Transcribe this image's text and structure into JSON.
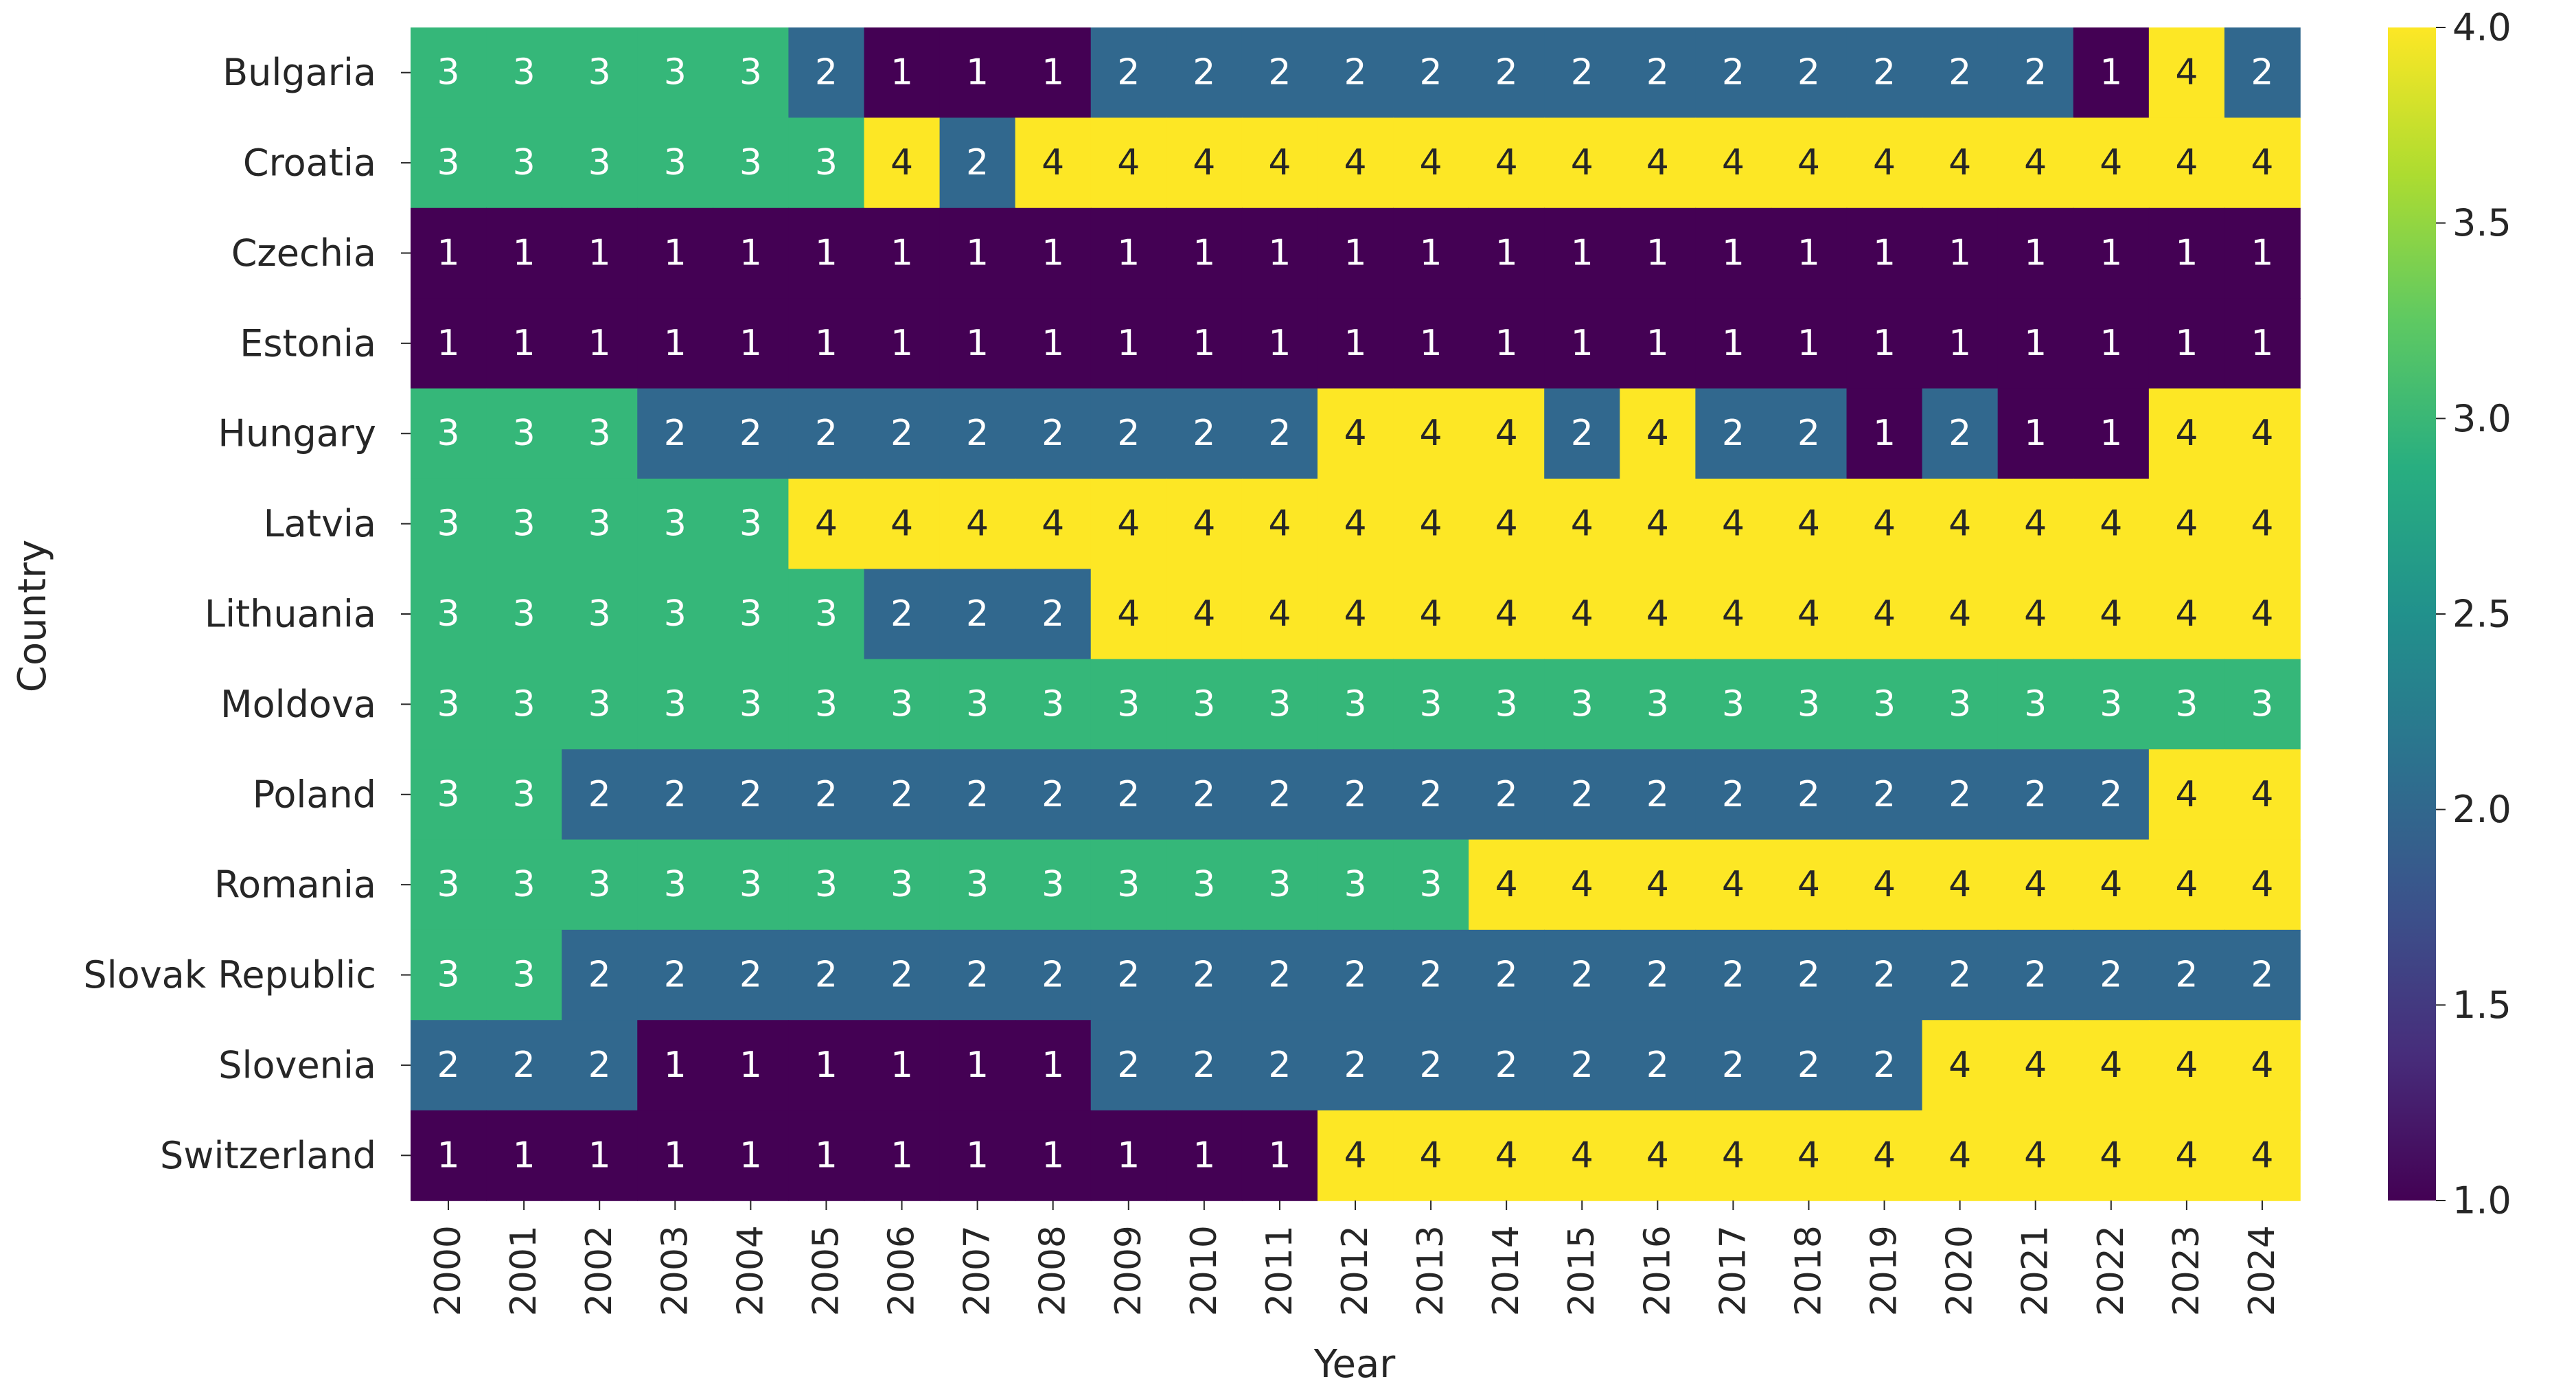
{
  "chart_data": {
    "type": "heatmap",
    "title": "",
    "xlabel": "Year",
    "ylabel": "Country",
    "x": [
      "2000",
      "2001",
      "2002",
      "2003",
      "2004",
      "2005",
      "2006",
      "2007",
      "2008",
      "2009",
      "2010",
      "2011",
      "2012",
      "2013",
      "2014",
      "2015",
      "2016",
      "2017",
      "2018",
      "2019",
      "2020",
      "2021",
      "2022",
      "2023",
      "2024"
    ],
    "y": [
      "Bulgaria",
      "Croatia",
      "Czechia",
      "Estonia",
      "Hungary",
      "Latvia",
      "Lithuania",
      "Moldova",
      "Poland",
      "Romania",
      "Slovak Republic",
      "Slovenia",
      "Switzerland"
    ],
    "values": [
      [
        3,
        3,
        3,
        3,
        3,
        2,
        1,
        1,
        1,
        2,
        2,
        2,
        2,
        2,
        2,
        2,
        2,
        2,
        2,
        2,
        2,
        2,
        1,
        4,
        2
      ],
      [
        3,
        3,
        3,
        3,
        3,
        3,
        4,
        2,
        4,
        4,
        4,
        4,
        4,
        4,
        4,
        4,
        4,
        4,
        4,
        4,
        4,
        4,
        4,
        4,
        4
      ],
      [
        1,
        1,
        1,
        1,
        1,
        1,
        1,
        1,
        1,
        1,
        1,
        1,
        1,
        1,
        1,
        1,
        1,
        1,
        1,
        1,
        1,
        1,
        1,
        1,
        1
      ],
      [
        1,
        1,
        1,
        1,
        1,
        1,
        1,
        1,
        1,
        1,
        1,
        1,
        1,
        1,
        1,
        1,
        1,
        1,
        1,
        1,
        1,
        1,
        1,
        1,
        1
      ],
      [
        3,
        3,
        3,
        2,
        2,
        2,
        2,
        2,
        2,
        2,
        2,
        2,
        4,
        4,
        4,
        2,
        4,
        2,
        2,
        1,
        2,
        1,
        1,
        4,
        4
      ],
      [
        3,
        3,
        3,
        3,
        3,
        4,
        4,
        4,
        4,
        4,
        4,
        4,
        4,
        4,
        4,
        4,
        4,
        4,
        4,
        4,
        4,
        4,
        4,
        4,
        4
      ],
      [
        3,
        3,
        3,
        3,
        3,
        3,
        2,
        2,
        2,
        4,
        4,
        4,
        4,
        4,
        4,
        4,
        4,
        4,
        4,
        4,
        4,
        4,
        4,
        4,
        4
      ],
      [
        3,
        3,
        3,
        3,
        3,
        3,
        3,
        3,
        3,
        3,
        3,
        3,
        3,
        3,
        3,
        3,
        3,
        3,
        3,
        3,
        3,
        3,
        3,
        3,
        3
      ],
      [
        3,
        3,
        2,
        2,
        2,
        2,
        2,
        2,
        2,
        2,
        2,
        2,
        2,
        2,
        2,
        2,
        2,
        2,
        2,
        2,
        2,
        2,
        2,
        4,
        4
      ],
      [
        3,
        3,
        3,
        3,
        3,
        3,
        3,
        3,
        3,
        3,
        3,
        3,
        3,
        3,
        4,
        4,
        4,
        4,
        4,
        4,
        4,
        4,
        4,
        4,
        4
      ],
      [
        3,
        3,
        2,
        2,
        2,
        2,
        2,
        2,
        2,
        2,
        2,
        2,
        2,
        2,
        2,
        2,
        2,
        2,
        2,
        2,
        2,
        2,
        2,
        2,
        2
      ],
      [
        2,
        2,
        2,
        1,
        1,
        1,
        1,
        1,
        1,
        2,
        2,
        2,
        2,
        2,
        2,
        2,
        2,
        2,
        2,
        2,
        4,
        4,
        4,
        4,
        4
      ],
      [
        1,
        1,
        1,
        1,
        1,
        1,
        1,
        1,
        1,
        1,
        1,
        1,
        4,
        4,
        4,
        4,
        4,
        4,
        4,
        4,
        4,
        4,
        4,
        4,
        4
      ]
    ],
    "colorscale": "viridis",
    "colors": {
      "1": "#440154",
      "2": "#31688e",
      "3": "#35b779",
      "4": "#fde725"
    },
    "annotation_text_colors": {
      "dark": "#ffffff",
      "light": "#262626"
    },
    "colorbar": {
      "range": [
        1.0,
        4.0
      ],
      "ticks": [
        "1.0",
        "1.5",
        "2.0",
        "2.5",
        "3.0",
        "3.5",
        "4.0"
      ]
    },
    "grid": false,
    "legend": "colorbar-right"
  }
}
